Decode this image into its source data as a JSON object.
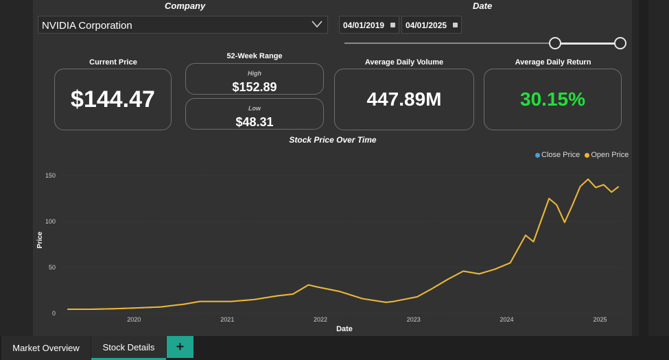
{
  "filters": {
    "company_label": "Company",
    "company_value": "NVIDIA Corporation",
    "date_label": "Date",
    "start_date": "04/01/2019",
    "end_date": "04/01/2025",
    "range_start_fraction": 0.77,
    "range_end_fraction": 1.0
  },
  "kpis": {
    "current_price_label": "Current Price",
    "current_price": "$144.47",
    "range_label": "52-Week Range",
    "high_label": "High",
    "high_value": "$152.89",
    "low_label": "Low",
    "low_value": "$48.31",
    "volume_label": "Average Daily Volume",
    "volume_value": "447.89M",
    "return_label": "Average Daily Return",
    "return_value": "30.15%",
    "return_color": "#22e03a"
  },
  "chart_data": {
    "type": "line",
    "title": "Stock Price Over Time",
    "xlabel": "Date",
    "ylabel": "Price",
    "x_ticks": [
      "2020",
      "2021",
      "2022",
      "2023",
      "2024",
      "2025"
    ],
    "y_ticks": [
      "0",
      "50",
      "100",
      "150"
    ],
    "ylim": [
      0,
      160
    ],
    "xlim": [
      "2019-04-01",
      "2025-04-01"
    ],
    "legend_position": "top-right",
    "series": [
      {
        "name": "Close Price",
        "color": "#4a9fdc",
        "x": [
          "2019-04",
          "2019-07",
          "2019-10",
          "2020-01",
          "2020-04",
          "2020-07",
          "2020-09",
          "2021-01",
          "2021-04",
          "2021-07",
          "2021-09",
          "2021-11",
          "2021-12",
          "2022-03",
          "2022-06",
          "2022-09",
          "2022-10",
          "2023-01",
          "2023-03",
          "2023-05",
          "2023-07",
          "2023-09",
          "2023-11",
          "2024-01",
          "2024-03",
          "2024-04",
          "2024-06",
          "2024-07",
          "2024-08",
          "2024-09",
          "2024-10",
          "2024-11",
          "2024-12",
          "2025-01",
          "2025-02",
          "2025-03"
        ],
        "values": [
          4.5,
          4.5,
          5,
          6,
          7,
          10,
          13,
          13,
          15,
          19,
          21,
          31,
          29,
          24,
          16,
          12,
          13,
          18,
          27,
          37,
          46,
          43,
          48,
          55,
          85,
          78,
          125,
          118,
          99,
          118,
          138,
          146,
          137,
          140,
          132,
          138
        ]
      },
      {
        "name": "Open Price",
        "color": "#f2b52c",
        "x": [
          "2019-04",
          "2019-07",
          "2019-10",
          "2020-01",
          "2020-04",
          "2020-07",
          "2020-09",
          "2021-01",
          "2021-04",
          "2021-07",
          "2021-09",
          "2021-11",
          "2021-12",
          "2022-03",
          "2022-06",
          "2022-09",
          "2022-10",
          "2023-01",
          "2023-03",
          "2023-05",
          "2023-07",
          "2023-09",
          "2023-11",
          "2024-01",
          "2024-03",
          "2024-04",
          "2024-06",
          "2024-07",
          "2024-08",
          "2024-09",
          "2024-10",
          "2024-11",
          "2024-12",
          "2025-01",
          "2025-02",
          "2025-03"
        ],
        "values": [
          4.5,
          4.5,
          5,
          6,
          7,
          10,
          13,
          13,
          15,
          19,
          21,
          31,
          29,
          24,
          16,
          12,
          13,
          18,
          27,
          37,
          46,
          43,
          48,
          55,
          85,
          78,
          125,
          118,
          99,
          118,
          138,
          146,
          137,
          140,
          132,
          138
        ]
      }
    ]
  },
  "tabs": [
    {
      "label": "Market Overview"
    },
    {
      "label": "Stock Details"
    }
  ],
  "add_tab": "+"
}
